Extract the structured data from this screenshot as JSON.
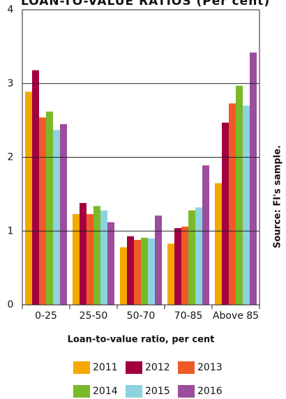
{
  "chart_data": {
    "type": "bar",
    "title": "LOAN-TO-VALUE RATIOS (Per cent)",
    "x_label": "Loan-to-value ratio, per cent",
    "source": "Source: FI's sample.",
    "categories": [
      "0-25",
      "25-50",
      "50-70",
      "70-85",
      "Above 85"
    ],
    "series": [
      {
        "name": "2011",
        "color": "#f5a800",
        "values": [
          2.89,
          1.23,
          0.78,
          0.83,
          1.65
        ]
      },
      {
        "name": "2012",
        "color": "#a3003f",
        "values": [
          3.18,
          1.38,
          0.93,
          1.04,
          2.47
        ]
      },
      {
        "name": "2013",
        "color": "#f05a28",
        "values": [
          2.54,
          1.23,
          0.88,
          1.06,
          2.73
        ]
      },
      {
        "name": "2014",
        "color": "#7ab929",
        "values": [
          2.62,
          1.34,
          0.91,
          1.28,
          2.97
        ]
      },
      {
        "name": "2015",
        "color": "#8dd3e0",
        "values": [
          2.37,
          1.28,
          0.9,
          1.32,
          2.7
        ]
      },
      {
        "name": "2016",
        "color": "#9b4d9e",
        "values": [
          2.45,
          1.12,
          1.21,
          1.89,
          3.42
        ]
      }
    ],
    "ylim": [
      0,
      4
    ],
    "yticks": [
      0,
      1,
      2,
      3,
      4
    ],
    "grid": true
  }
}
